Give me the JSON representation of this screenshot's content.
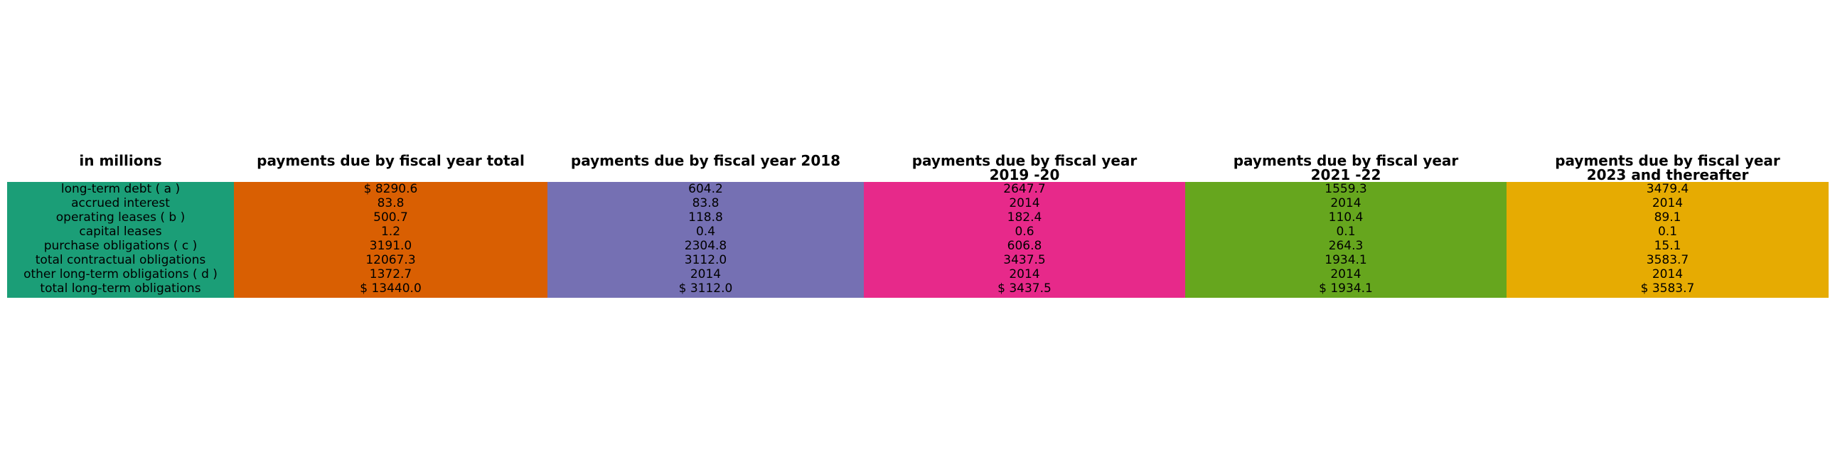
{
  "chart_data": {
    "type": "table",
    "columns": [
      {
        "header": "in millions",
        "color": "#1b9e77"
      },
      {
        "header": "payments due by fiscal year total",
        "color": "#d95f02"
      },
      {
        "header": "payments due by fiscal year 2018",
        "color": "#7570b3"
      },
      {
        "header": "payments due by fiscal year 2019 -20",
        "color": "#e7298a"
      },
      {
        "header": "payments due by fiscal year 2021 -22",
        "color": "#66a61e"
      },
      {
        "header": "payments due by fiscal year 2023 and thereafter",
        "color": "#e6ab02"
      }
    ],
    "rows": [
      [
        "long-term debt ( a )",
        "$ 8290.6",
        "604.2",
        "2647.7",
        "1559.3",
        "3479.4"
      ],
      [
        "accrued interest",
        "83.8",
        "83.8",
        "2014",
        "2014",
        "2014"
      ],
      [
        "operating leases ( b )",
        "500.7",
        "118.8",
        "182.4",
        "110.4",
        "89.1"
      ],
      [
        "capital leases",
        "1.2",
        "0.4",
        "0.6",
        "0.1",
        "0.1"
      ],
      [
        "purchase obligations ( c )",
        "3191.0",
        "2304.8",
        "606.8",
        "264.3",
        "15.1"
      ],
      [
        "total contractual obligations",
        "12067.3",
        "3112.0",
        "3437.5",
        "1934.1",
        "3583.7"
      ],
      [
        "other long-term obligations ( d )",
        "1372.7",
        "2014",
        "2014",
        "2014",
        "2014"
      ],
      [
        "total long-term obligations",
        "$ 13440.0",
        "$ 3112.0",
        "$ 3437.5",
        "$ 1934.1",
        "$ 3583.7"
      ]
    ]
  }
}
